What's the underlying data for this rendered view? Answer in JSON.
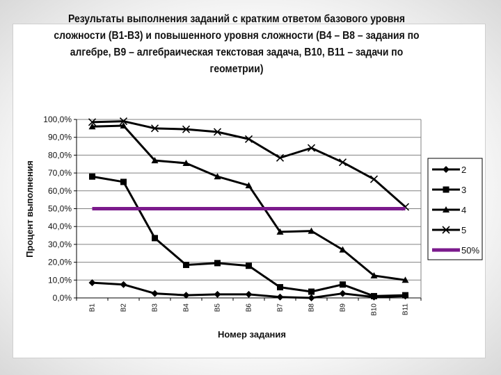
{
  "chart_data": {
    "type": "line",
    "title": "Результаты выполнения заданий с кратким ответом базового уровня сложности (В1-В3) и повышенного уровня сложности (В4 – В8 – задания по алгебре, В9 – алгебраическая текстовая задача, В10, В11 – задачи по геометрии)",
    "xlabel": "Номер задания",
    "ylabel": "Процент выполнения",
    "categories": [
      "В1",
      "В2",
      "В3",
      "В4",
      "В5",
      "В6",
      "В7",
      "В8",
      "В9",
      "В10",
      "В11"
    ],
    "yticks": [
      "0,0%",
      "10,0%",
      "20,0%",
      "30,0%",
      "40,0%",
      "50,0%",
      "60,0%",
      "70,0%",
      "80,0%",
      "90,0%",
      "100,0%"
    ],
    "ylim": [
      0,
      100
    ],
    "grid": true,
    "legend_position": "right",
    "series": [
      {
        "name": "2",
        "marker": "diamond",
        "color": "#000000",
        "values": [
          8.5,
          7.5,
          2.5,
          1.5,
          2,
          2,
          0.5,
          0,
          2.5,
          0.5,
          1
        ]
      },
      {
        "name": "3",
        "marker": "square",
        "color": "#000000",
        "values": [
          68,
          65,
          33.5,
          18.5,
          19.5,
          18,
          6,
          3.5,
          7.5,
          1,
          1.5
        ]
      },
      {
        "name": "4",
        "marker": "triangle",
        "color": "#000000",
        "values": [
          96,
          96.5,
          77,
          75.5,
          68,
          63,
          37,
          37.5,
          27,
          12.5,
          10
        ]
      },
      {
        "name": "5",
        "marker": "x",
        "color": "#000000",
        "values": [
          98.5,
          99,
          95,
          94.5,
          93,
          89,
          78.5,
          84,
          76,
          66.5,
          51
        ]
      },
      {
        "name": "50%",
        "marker": "none",
        "color": "#7b1a8c",
        "values": [
          50,
          50,
          50,
          50,
          50,
          50,
          50,
          50,
          50,
          50,
          50
        ]
      }
    ]
  }
}
